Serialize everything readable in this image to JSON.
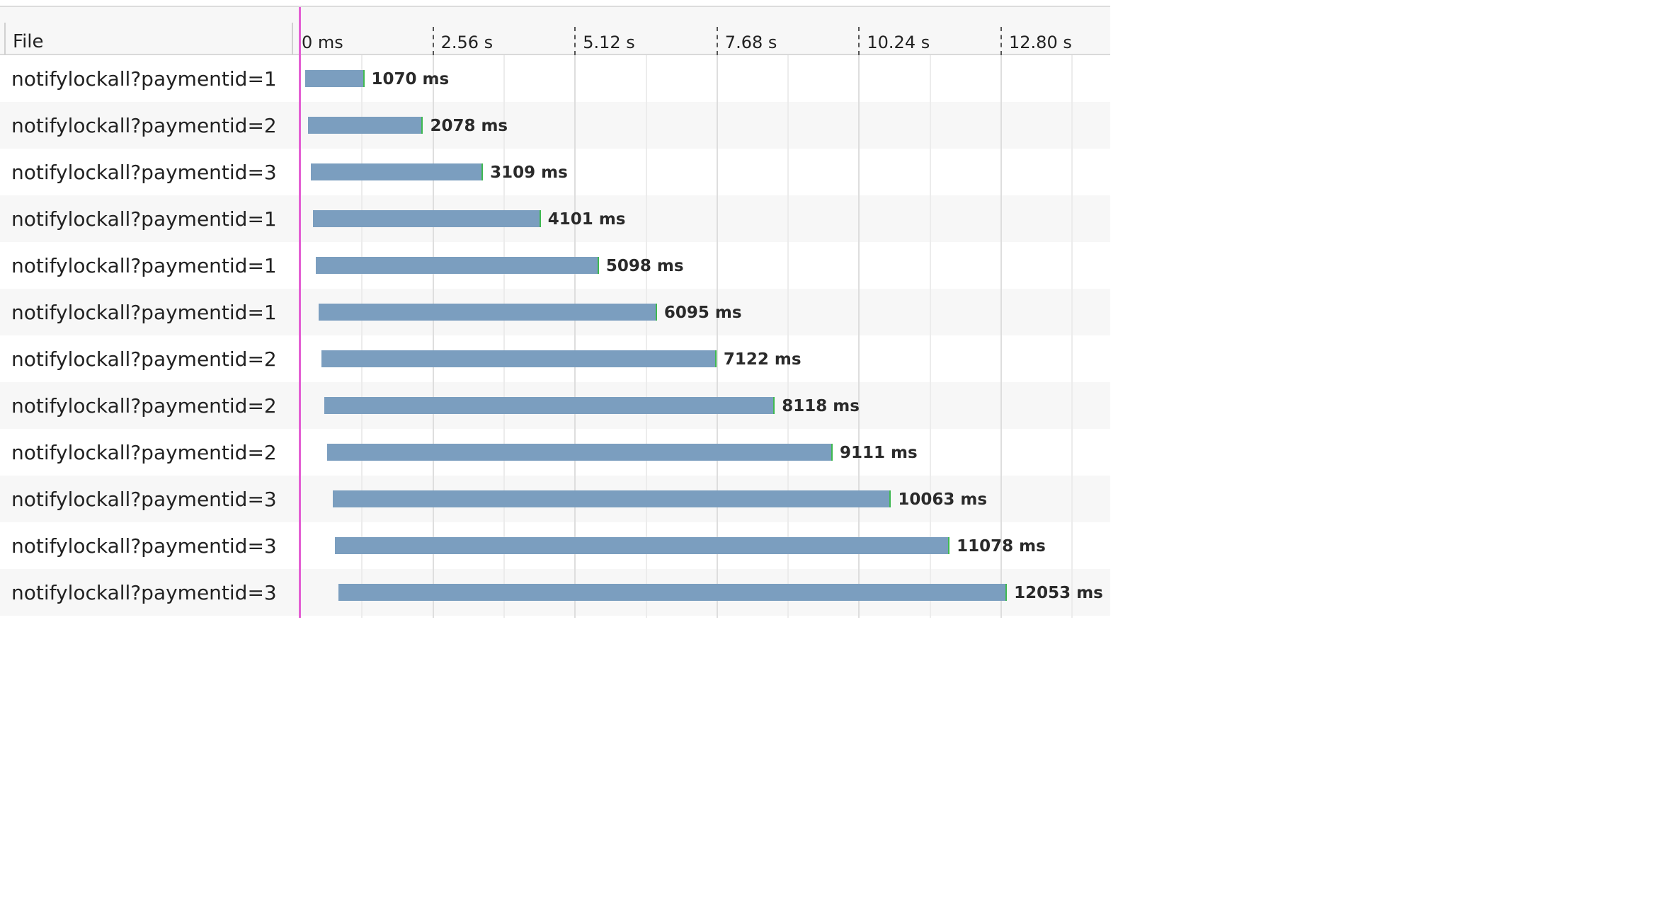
{
  "header": {
    "file_label": "File",
    "ticks": [
      "0 ms",
      "2.56 s",
      "5.12 s",
      "7.68 s",
      "10.24 s",
      "12.80 s"
    ]
  },
  "colors": {
    "bar": "#7b9ebf",
    "bar_end": "#3fb950",
    "cursor": "#e35fd3",
    "row_alt": "#f7f7f7"
  },
  "axis": {
    "unit": "ms",
    "tick_ms": [
      0,
      2560,
      5120,
      7680,
      10240,
      12800
    ]
  },
  "requests": [
    {
      "name": "notifylockall?paymentid=1",
      "start_ms": 60,
      "duration_ms": 1070,
      "label": "1070 ms"
    },
    {
      "name": "notifylockall?paymentid=2",
      "start_ms": 110,
      "duration_ms": 2078,
      "label": "2078 ms"
    },
    {
      "name": "notifylockall?paymentid=3",
      "start_ms": 160,
      "duration_ms": 3109,
      "label": "3109 ms"
    },
    {
      "name": "notifylockall?paymentid=1",
      "start_ms": 210,
      "duration_ms": 4101,
      "label": "4101 ms"
    },
    {
      "name": "notifylockall?paymentid=1",
      "start_ms": 260,
      "duration_ms": 5098,
      "label": "5098 ms"
    },
    {
      "name": "notifylockall?paymentid=1",
      "start_ms": 310,
      "duration_ms": 6095,
      "label": "6095 ms"
    },
    {
      "name": "notifylockall?paymentid=2",
      "start_ms": 355,
      "duration_ms": 7122,
      "label": "7122 ms"
    },
    {
      "name": "notifylockall?paymentid=2",
      "start_ms": 410,
      "duration_ms": 8118,
      "label": "8118 ms"
    },
    {
      "name": "notifylockall?paymentid=2",
      "start_ms": 460,
      "duration_ms": 9111,
      "label": "9111 ms"
    },
    {
      "name": "notifylockall?paymentid=3",
      "start_ms": 560,
      "duration_ms": 10063,
      "label": "10063 ms"
    },
    {
      "name": "notifylockall?paymentid=3",
      "start_ms": 600,
      "duration_ms": 11078,
      "label": "11078 ms"
    },
    {
      "name": "notifylockall?paymentid=3",
      "start_ms": 660,
      "duration_ms": 12053,
      "label": "12053 ms"
    }
  ]
}
